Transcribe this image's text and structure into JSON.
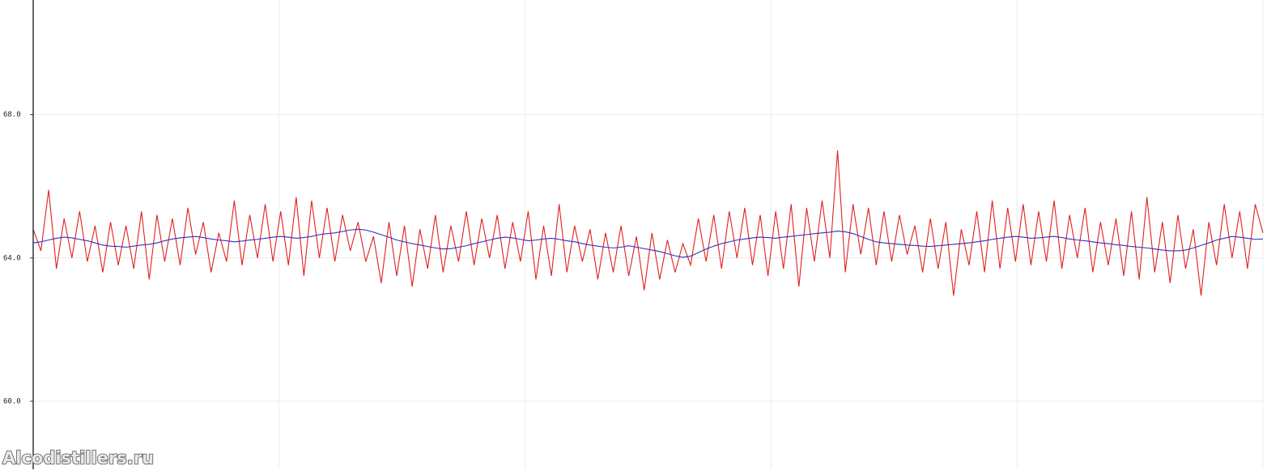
{
  "chart_data": {
    "type": "line",
    "watermark": "Alcodistillers.ru",
    "ylim": [
      58.1,
      71.2
    ],
    "yticks": [
      {
        "value": 60,
        "label": "60.0"
      },
      {
        "value": 64,
        "label": "64.0"
      },
      {
        "value": 68,
        "label": "68.0"
      }
    ],
    "grid": true,
    "series": [
      {
        "color": "#e02020",
        "values": [
          64.8,
          64.2,
          65.9,
          63.7,
          65.1,
          64.0,
          65.3,
          63.9,
          64.9,
          63.6,
          65.0,
          63.8,
          64.9,
          63.7,
          65.3,
          63.4,
          65.2,
          63.9,
          65.1,
          63.8,
          65.4,
          64.1,
          65.0,
          63.6,
          64.7,
          63.9,
          65.6,
          63.8,
          65.2,
          64.0,
          65.5,
          63.9,
          65.3,
          63.8,
          65.7,
          63.5,
          65.6,
          64.0,
          65.4,
          63.9,
          65.2,
          64.2,
          65.0,
          63.9,
          64.6,
          63.3,
          65.0,
          63.5,
          64.9,
          63.2,
          64.8,
          63.7,
          65.2,
          63.6,
          64.9,
          63.9,
          65.3,
          63.8,
          65.1,
          64.0,
          65.2,
          63.7,
          65.0,
          63.9,
          65.3,
          63.4,
          64.9,
          63.5,
          65.5,
          63.6,
          64.9,
          63.9,
          64.8,
          63.4,
          64.7,
          63.6,
          64.9,
          63.5,
          64.6,
          63.1,
          64.7,
          63.4,
          64.5,
          63.6,
          64.4,
          63.8,
          65.1,
          63.9,
          65.2,
          63.7,
          65.3,
          64.0,
          65.4,
          63.8,
          65.2,
          63.5,
          65.3,
          63.7,
          65.5,
          63.2,
          65.4,
          63.9,
          65.6,
          64.0,
          67.0,
          63.6,
          65.5,
          64.1,
          65.4,
          63.8,
          65.3,
          63.9,
          65.2,
          64.1,
          64.9,
          63.6,
          65.1,
          63.7,
          65.0,
          62.95,
          64.8,
          63.8,
          65.3,
          63.6,
          65.6,
          63.7,
          65.4,
          63.9,
          65.5,
          63.8,
          65.3,
          63.9,
          65.6,
          63.7,
          65.2,
          64.0,
          65.4,
          63.6,
          65.0,
          63.8,
          65.1,
          63.5,
          65.3,
          63.4,
          65.7,
          63.6,
          65.0,
          63.3,
          65.2,
          63.7,
          64.8,
          62.95,
          65.0,
          63.8,
          65.5,
          64.0,
          65.3,
          63.7,
          65.5,
          64.7
        ]
      },
      {
        "color": "#3030c0",
        "values": [
          64.42,
          64.45,
          64.5,
          64.55,
          64.58,
          64.56,
          64.52,
          64.48,
          64.42,
          64.36,
          64.33,
          64.32,
          64.3,
          64.33,
          64.36,
          64.38,
          64.42,
          64.48,
          64.53,
          64.56,
          64.58,
          64.6,
          64.57,
          64.53,
          64.5,
          64.48,
          64.45,
          64.47,
          64.5,
          64.52,
          64.55,
          64.58,
          64.6,
          64.58,
          64.55,
          64.57,
          64.6,
          64.65,
          64.68,
          64.7,
          64.74,
          64.78,
          64.8,
          64.78,
          64.72,
          64.65,
          64.58,
          64.5,
          64.45,
          64.4,
          64.36,
          64.32,
          64.28,
          64.25,
          64.26,
          64.3,
          64.34,
          64.4,
          64.45,
          64.5,
          64.55,
          64.58,
          64.56,
          64.52,
          64.48,
          64.5,
          64.53,
          64.55,
          64.52,
          64.48,
          64.45,
          64.4,
          64.36,
          64.33,
          64.3,
          64.28,
          64.3,
          64.34,
          64.3,
          64.26,
          64.22,
          64.18,
          64.12,
          64.06,
          64.02,
          64.05,
          64.15,
          64.25,
          64.33,
          64.4,
          64.45,
          64.5,
          64.53,
          64.56,
          64.58,
          64.57,
          64.55,
          64.58,
          64.6,
          64.63,
          64.65,
          64.68,
          64.7,
          64.72,
          64.75,
          64.73,
          64.68,
          64.6,
          64.52,
          64.45,
          64.42,
          64.4,
          64.38,
          64.36,
          64.35,
          64.33,
          64.32,
          64.34,
          64.36,
          64.38,
          64.4,
          64.42,
          64.45,
          64.48,
          64.52,
          64.55,
          64.58,
          64.6,
          64.58,
          64.55,
          64.56,
          64.58,
          64.6,
          64.57,
          64.53,
          64.5,
          64.48,
          64.45,
          64.42,
          64.4,
          64.37,
          64.35,
          64.32,
          64.3,
          64.28,
          64.25,
          64.22,
          64.2,
          64.2,
          64.22,
          64.28,
          64.35,
          64.42,
          64.5,
          64.55,
          64.6,
          64.58,
          64.55,
          64.52,
          64.53
        ]
      }
    ]
  }
}
